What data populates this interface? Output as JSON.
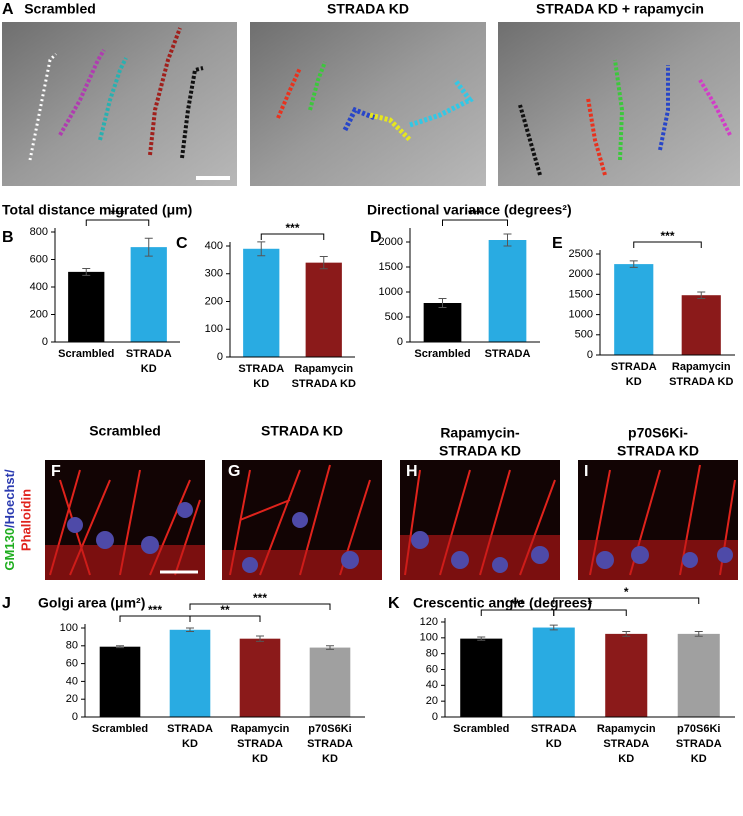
{
  "panel_a": {
    "letter": "A",
    "titles": [
      "Scrambled",
      "STRADA KD",
      "STRADA KD + rapamycin"
    ]
  },
  "headings": {
    "left": "Total distance migrated (μm)",
    "right": "Directional variance (degrees²)"
  },
  "panel_fi": {
    "letters": [
      "F",
      "G",
      "H",
      "I"
    ],
    "titles": [
      [
        "Scrambled"
      ],
      [
        "STRADA KD"
      ],
      [
        "Rapamycin-",
        "STRADA KD"
      ],
      [
        "p70S6Ki-",
        "STRADA KD"
      ]
    ]
  },
  "stain_label": {
    "line1": [
      "GM130",
      "/Hoechst/"
    ],
    "line2": "Phalloidin"
  },
  "chart_data": [
    {
      "type": "bar",
      "panel": "B",
      "categories": [
        [
          "Scrambled"
        ],
        [
          "STRADA",
          "KD"
        ]
      ],
      "values": [
        510,
        690
      ],
      "errors": [
        25,
        65
      ],
      "colors": [
        "#000000",
        "#29abe2"
      ],
      "ylim": [
        0,
        800
      ],
      "yticks": [
        0,
        200,
        400,
        600,
        800
      ],
      "brackets": [
        {
          "from": 0,
          "to": 1,
          "label": "***"
        }
      ]
    },
    {
      "type": "bar",
      "panel": "C",
      "categories": [
        [
          "STRADA",
          "KD"
        ],
        [
          "Rapamycin",
          "STRADA KD"
        ]
      ],
      "values": [
        390,
        340
      ],
      "errors": [
        25,
        22
      ],
      "colors": [
        "#29abe2",
        "#8b1a1a"
      ],
      "ylim": [
        0,
        400
      ],
      "yticks": [
        0,
        100,
        200,
        300,
        400
      ],
      "brackets": [
        {
          "from": 0,
          "to": 1,
          "label": "***"
        }
      ]
    },
    {
      "type": "bar",
      "panel": "D",
      "categories": [
        [
          "Scrambled"
        ],
        [
          "STRADA"
        ]
      ],
      "values": [
        780,
        2040
      ],
      "errors": [
        90,
        120
      ],
      "colors": [
        "#000000",
        "#29abe2"
      ],
      "ylim": [
        0,
        2200
      ],
      "yticks": [
        0,
        500,
        1000,
        1500,
        2000
      ],
      "brackets": [
        {
          "from": 0,
          "to": 1,
          "label": "***"
        }
      ]
    },
    {
      "type": "bar",
      "panel": "E",
      "categories": [
        [
          "STRADA",
          "KD"
        ],
        [
          "Rapamycin",
          "STRADA KD"
        ]
      ],
      "values": [
        2250,
        1480
      ],
      "errors": [
        80,
        80
      ],
      "colors": [
        "#29abe2",
        "#8b1a1a"
      ],
      "ylim": [
        0,
        2500
      ],
      "yticks": [
        0,
        500,
        1000,
        1500,
        2000,
        2500
      ],
      "brackets": [
        {
          "from": 0,
          "to": 1,
          "label": "***"
        }
      ]
    },
    {
      "type": "bar",
      "panel": "J",
      "title": "Golgi area (μm²)",
      "categories": [
        [
          "Scrambled"
        ],
        [
          "STRADA",
          "KD"
        ],
        [
          "Rapamycin",
          "STRADA",
          "KD"
        ],
        [
          "p70S6Ki",
          "STRADA",
          "KD"
        ]
      ],
      "values": [
        79,
        98,
        88,
        78
      ],
      "errors": [
        1,
        2,
        3,
        2
      ],
      "colors": [
        "#000000",
        "#29abe2",
        "#8b1a1a",
        "#a0a0a0"
      ],
      "ylim": [
        0,
        100
      ],
      "yticks": [
        0,
        20,
        40,
        60,
        80,
        100
      ],
      "brackets": [
        {
          "from": 0,
          "to": 1,
          "label": "***"
        },
        {
          "from": 1,
          "to": 2,
          "label": "**"
        },
        {
          "from": 1,
          "to": 3,
          "label": "***"
        }
      ]
    },
    {
      "type": "bar",
      "panel": "K",
      "title": "Crescentic angle (degrees)",
      "categories": [
        [
          "Scrambled"
        ],
        [
          "STRADA",
          "KD"
        ],
        [
          "Rapamycin",
          "STRADA",
          "KD"
        ],
        [
          "p70S6Ki",
          "STRADA",
          "KD"
        ]
      ],
      "values": [
        99,
        113,
        105,
        105
      ],
      "errors": [
        2,
        3,
        3,
        3
      ],
      "colors": [
        "#000000",
        "#29abe2",
        "#8b1a1a",
        "#a0a0a0"
      ],
      "ylim": [
        0,
        120
      ],
      "yticks": [
        0,
        20,
        40,
        60,
        80,
        100,
        120
      ],
      "brackets": [
        {
          "from": 0,
          "to": 1,
          "label": "***"
        },
        {
          "from": 1,
          "to": 2,
          "label": "*"
        },
        {
          "from": 1,
          "to": 3,
          "label": "*"
        }
      ]
    }
  ]
}
